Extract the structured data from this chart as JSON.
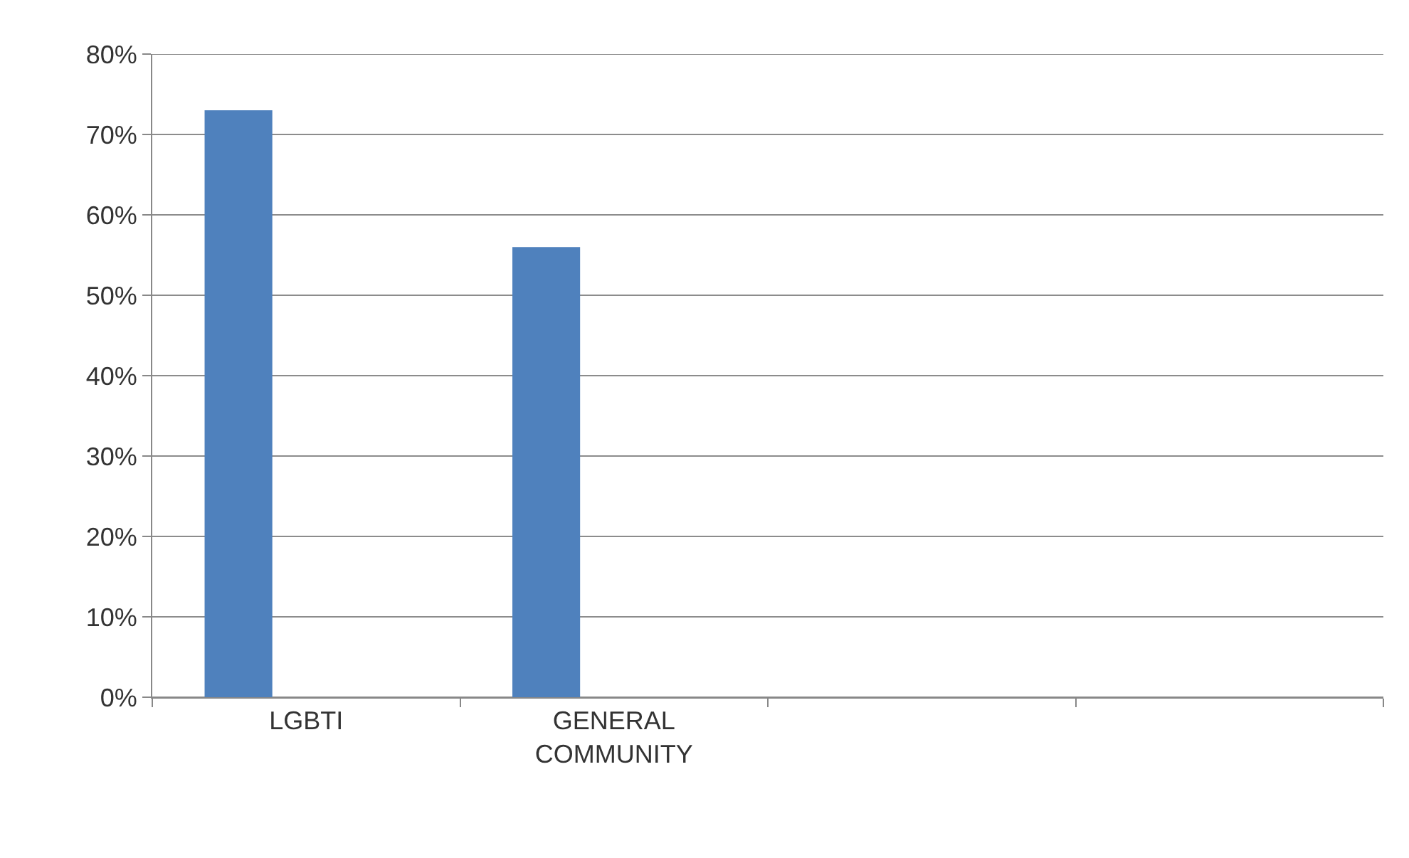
{
  "chart_data": {
    "type": "bar",
    "categories": [
      "LGBTI",
      "GENERAL COMMUNITY",
      null,
      null
    ],
    "values": [
      73,
      56,
      null,
      null
    ],
    "color": "#4f81bd",
    "ylim": [
      0,
      80
    ],
    "yticks": [
      {
        "value": 0,
        "label": "0%"
      },
      {
        "value": 10,
        "label": "10%"
      },
      {
        "value": 20,
        "label": "20%"
      },
      {
        "value": 30,
        "label": "30%"
      },
      {
        "value": 40,
        "label": "40%"
      },
      {
        "value": 50,
        "label": "50%"
      },
      {
        "value": 60,
        "label": "60%"
      },
      {
        "value": 70,
        "label": "70%"
      },
      {
        "value": 80,
        "label": "80%"
      }
    ],
    "grid": "y"
  }
}
